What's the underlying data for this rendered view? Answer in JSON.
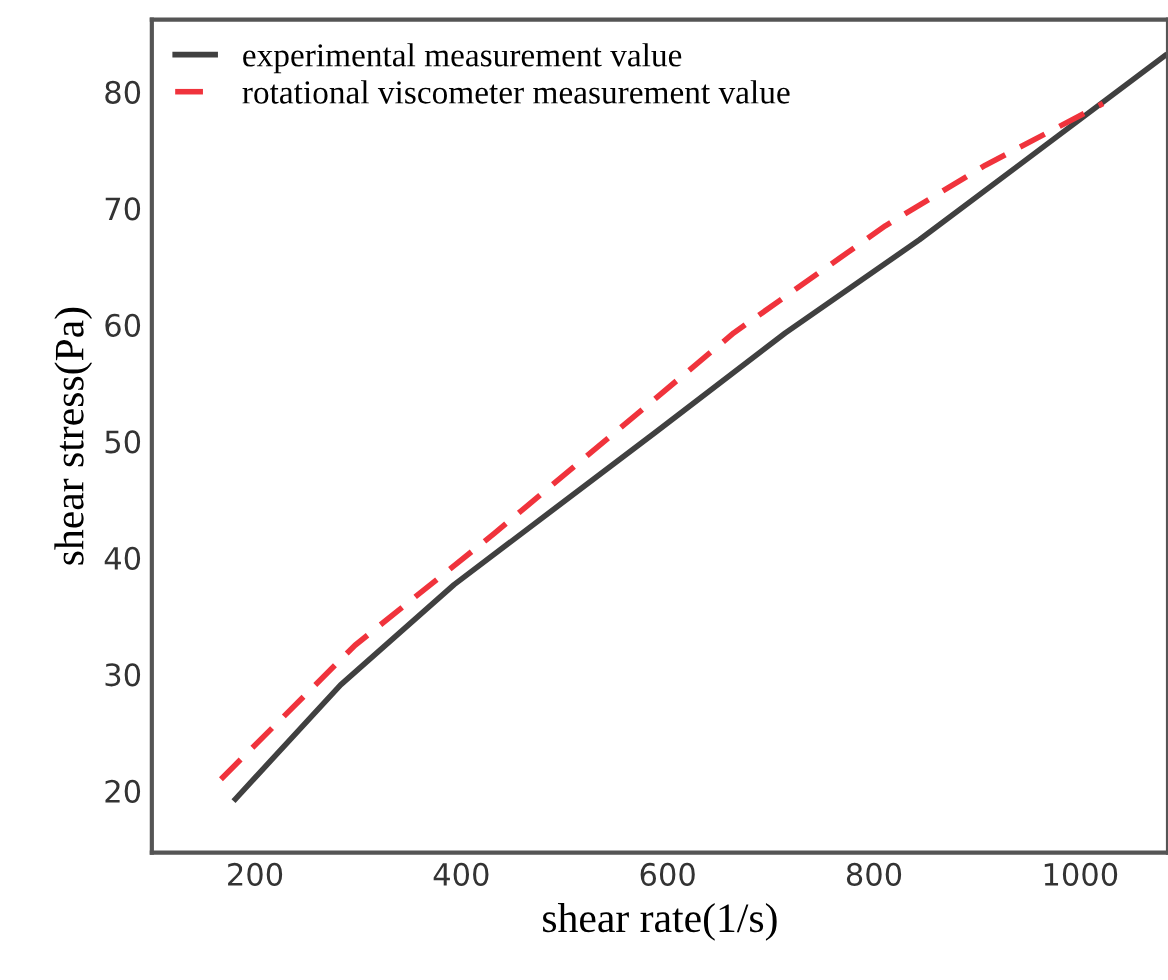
{
  "chart_data": {
    "type": "line",
    "xlabel": "shear rate(1/s)",
    "ylabel": "shear stress(Pa)",
    "xlim": [
      100,
      1085
    ],
    "ylim": [
      14.7,
      86.2
    ],
    "xticks": [
      200,
      400,
      600,
      800,
      1000
    ],
    "yticks": [
      20,
      30,
      40,
      50,
      60,
      70,
      80
    ],
    "grid": false,
    "legend": "top left",
    "series": [
      {
        "name": "experimental measurement value",
        "color": "#404040",
        "line_style": "solid",
        "x": [
          181,
          283,
          393,
          587,
          714,
          844,
          1082
        ],
        "values": [
          19.3,
          29.1,
          37.7,
          50.7,
          59.3,
          67.3,
          83.1
        ]
      },
      {
        "name": "rotational viscometer measurement value",
        "color": "#f0333c",
        "line_style": "dashed",
        "x": [
          167,
          297,
          432,
          664,
          811,
          908,
          1022
        ],
        "values": [
          21.0,
          32.5,
          42.1,
          59.3,
          68.5,
          73.7,
          79.0
        ]
      }
    ]
  }
}
